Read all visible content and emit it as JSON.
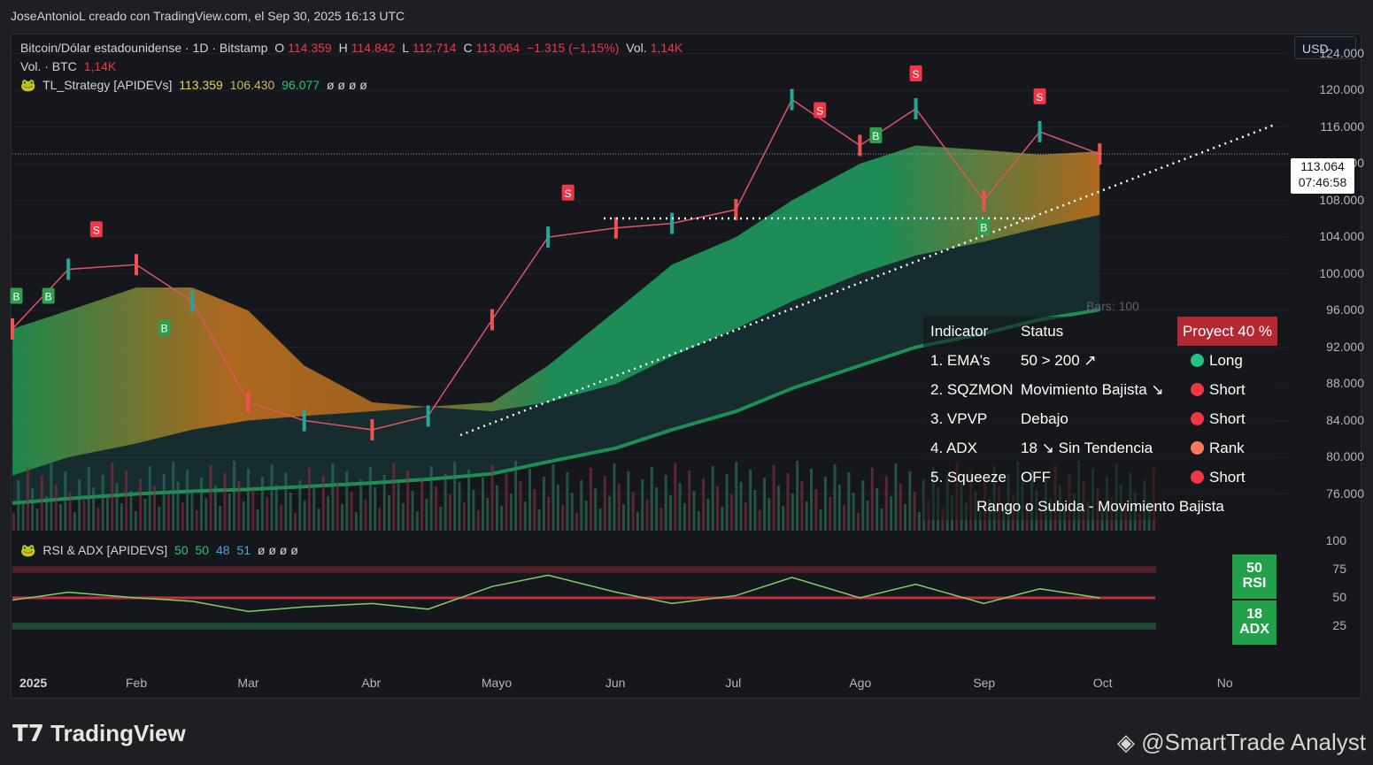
{
  "header": {
    "title": "JoseAntonioL creado con TradingView.com, el Sep 30, 2025 16:13 UTC"
  },
  "legend": {
    "symbol": "Bitcoin/Dólar estadounidense · 1D · Bitstamp",
    "o_label": "O",
    "o": "114.359",
    "h_label": "H",
    "h": "114.842",
    "l_label": "L",
    "l": "112.714",
    "c_label": "C",
    "c": "113.064",
    "chg": "−1.315 (−1,15%)",
    "vol_label": "Vol.",
    "vol": "1,14K",
    "vol2_label": "Vol. · BTC",
    "vol2": "1,14K",
    "ind_name": "TL_Strategy [APIDEVs]",
    "ind_v1": "113.359",
    "ind_v2": "106.430",
    "ind_v3": "96.077",
    "ind_null": "ø ø ø ø",
    "rsi_name": "RSI & ADX [APIDEVS]",
    "rsi_v1": "50",
    "rsi_v2": "50",
    "rsi_v3": "48",
    "rsi_v4": "51",
    "rsi_null": "ø ø ø ø"
  },
  "currency": "USD",
  "last_price": "113.064",
  "countdown": "07:46:58",
  "bars_label": "Bars: 100",
  "table": {
    "headers": [
      "Indicator",
      "Status",
      "Proyect 40 %"
    ],
    "rows": [
      {
        "name": "1. EMA's",
        "status": "50 > 200 ↗",
        "signal": "Long",
        "color": "#26c281"
      },
      {
        "name": "2. SQZMON",
        "status": "Movimiento Bajista ↘",
        "signal": "Short",
        "color": "#f23645"
      },
      {
        "name": "3. VPVP",
        "status": "Debajo",
        "signal": "Short",
        "color": "#f23645"
      },
      {
        "name": "4. ADX",
        "status": "18 ↘ Sin Tendencia",
        "signal": "Rank",
        "color": "#ff7a5c"
      },
      {
        "name": "5. Squeeze",
        "status": "OFF",
        "signal": "Short",
        "color": "#f23645"
      }
    ],
    "footer": "Rango o Subida - Movimiento Bajista"
  },
  "rsi_box": {
    "rsi_value": "50",
    "rsi_label": "RSI",
    "adx_value": "18",
    "adx_label": "ADX"
  },
  "x_labels": [
    "2025",
    "Feb",
    "Mar",
    "Abr",
    "Mayo",
    "Jun",
    "Jul",
    "Ago",
    "Sep",
    "Oct",
    "No"
  ],
  "branding": {
    "left": "TradingView",
    "right": "@SmartTrade Analyst"
  },
  "chart_data": {
    "type": "line",
    "title": "Bitcoin/Dólar estadounidense · 1D · Bitstamp",
    "y_ticks": [
      124000,
      120000,
      116000,
      112000,
      108000,
      104000,
      100000,
      96000,
      92000,
      88000,
      84000,
      80000,
      76000
    ],
    "y_tick_labels": [
      "124.000",
      "120.000",
      "116.000",
      "112.000",
      "108.000",
      "104.000",
      "100.000",
      "96.000",
      "92.000",
      "88.000",
      "84.000",
      "80.000",
      "76.000"
    ],
    "ylim": [
      72000,
      126000
    ],
    "x": [
      "2025-01-01",
      "2025-01-15",
      "2025-02-01",
      "2025-02-15",
      "2025-03-01",
      "2025-03-15",
      "2025-04-01",
      "2025-04-15",
      "2025-05-01",
      "2025-05-15",
      "2025-06-01",
      "2025-06-15",
      "2025-07-01",
      "2025-07-15",
      "2025-08-01",
      "2025-08-15",
      "2025-09-01",
      "2025-09-15",
      "2025-09-30"
    ],
    "series": [
      {
        "name": "Close",
        "values": [
          94000,
          100500,
          101000,
          97000,
          86000,
          84000,
          83000,
          84500,
          95000,
          104000,
          105000,
          105500,
          107000,
          119000,
          114000,
          118000,
          108000,
          115500,
          113064
        ]
      },
      {
        "name": "EMA50",
        "values": [
          94000,
          96000,
          98500,
          98500,
          96000,
          90000,
          86000,
          85500,
          86000,
          90000,
          96000,
          101000,
          104000,
          108000,
          112000,
          114000,
          113500,
          113000,
          113359
        ]
      },
      {
        "name": "EMA100",
        "values": [
          78000,
          80000,
          81500,
          83000,
          84000,
          84500,
          85000,
          85500,
          85000,
          86000,
          88000,
          91000,
          94000,
          97000,
          100000,
          102000,
          103500,
          105000,
          106430
        ]
      },
      {
        "name": "EMA200",
        "values": [
          75000,
          75500,
          76000,
          76300,
          76500,
          76800,
          77200,
          77600,
          78200,
          79500,
          81000,
          83000,
          85000,
          87500,
          90000,
          92000,
          93500,
          95000,
          96077
        ]
      }
    ],
    "rsi": {
      "yticks": [
        100,
        75,
        50,
        25
      ],
      "values": [
        48,
        55,
        50,
        47,
        38,
        42,
        45,
        40,
        60,
        70,
        55,
        45,
        52,
        68,
        50,
        62,
        45,
        58,
        50
      ]
    },
    "signals": [
      {
        "t": "S",
        "x": "2025-01-22"
      },
      {
        "t": "B",
        "x": "2025-01-02"
      },
      {
        "t": "B",
        "x": "2025-01-10"
      },
      {
        "t": "B",
        "x": "2025-02-08"
      },
      {
        "t": "S",
        "x": "2025-05-20"
      },
      {
        "t": "S",
        "x": "2025-07-22"
      },
      {
        "t": "S",
        "x": "2025-08-15"
      },
      {
        "t": "S",
        "x": "2025-09-15"
      },
      {
        "t": "B",
        "x": "2025-08-05"
      },
      {
        "t": "B",
        "x": "2025-09-01"
      }
    ]
  }
}
